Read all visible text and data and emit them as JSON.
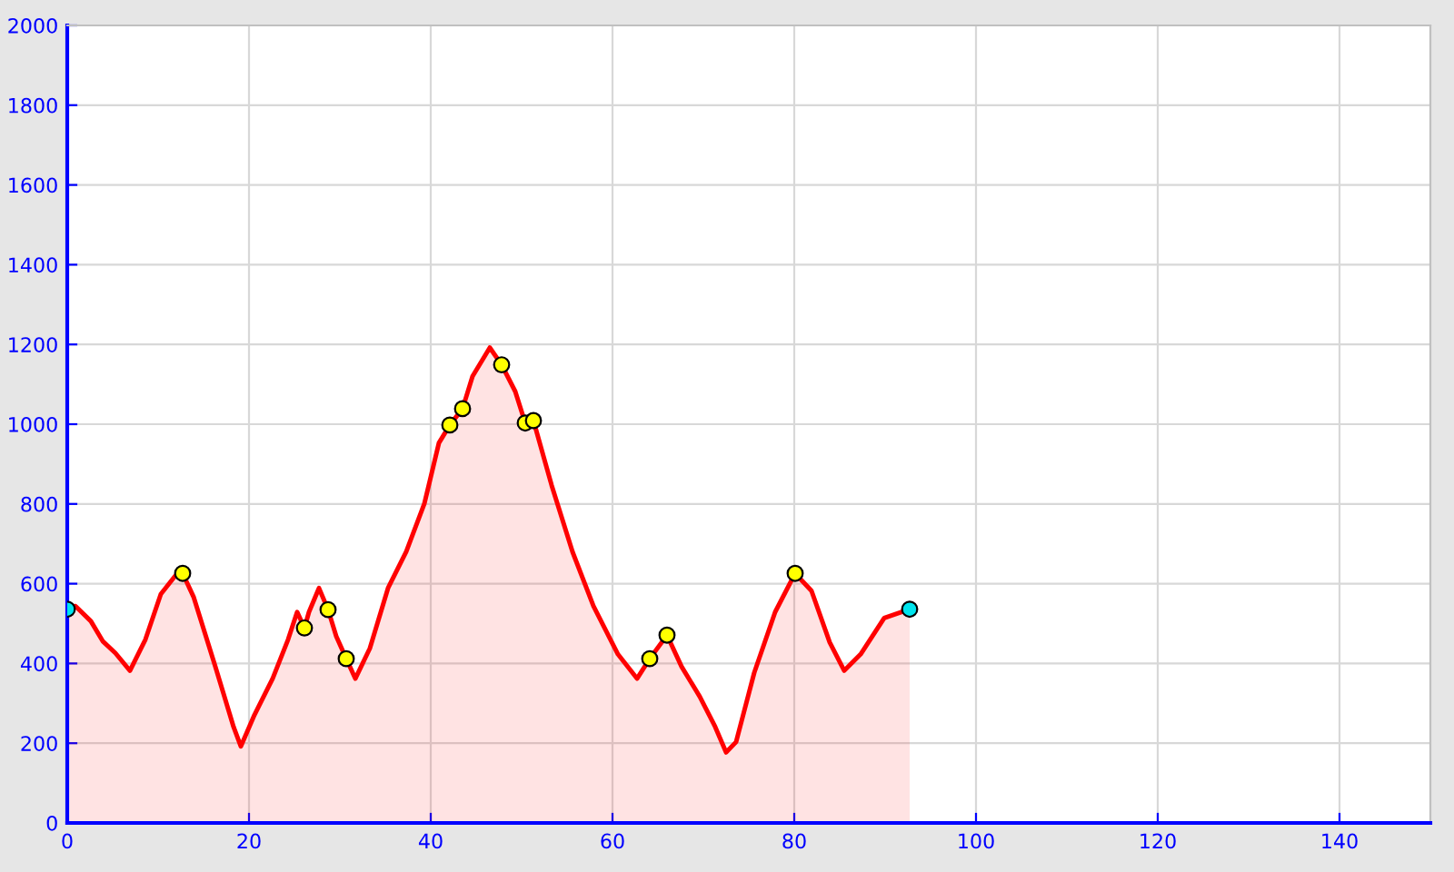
{
  "chart_data": {
    "type": "area",
    "xlim": [
      0,
      150
    ],
    "ylim": [
      0,
      2000
    ],
    "xticks": [
      0,
      20,
      40,
      60,
      80,
      100,
      120,
      140
    ],
    "yticks": [
      0,
      200,
      400,
      600,
      800,
      1000,
      1200,
      1400,
      1600,
      1800,
      2000
    ],
    "grid": true,
    "legend": false,
    "series": [
      {
        "color": "#ff0000",
        "marker": "none",
        "x": [
          0,
          0.9,
          2.6,
          3.9,
          5.3,
          6.9,
          8.6,
          10.3,
          11.9,
          12.7,
          13.9,
          16.3,
          18.3,
          19.1,
          20.6,
          22.6,
          24.3,
          25.3,
          26.1,
          26.6,
          27.7,
          28.7,
          29.6,
          30.7,
          31.7,
          33.3,
          35.3,
          37.3,
          39.3,
          40.9,
          42.1,
          43.5,
          44.6,
          46.5,
          47.8,
          49.3,
          50.4,
          51.3,
          53.3,
          55.6,
          57.9,
          60.6,
          62.7,
          64.1,
          66.0,
          67.6,
          69.6,
          71.3,
          72.5,
          73.6,
          75.6,
          77.9,
          80.1,
          81.9,
          83.9,
          85.5,
          87.3,
          89.9,
          92.7
        ],
        "values": [
          536,
          544,
          506,
          456,
          426,
          382,
          460,
          574,
          620,
          626,
          567,
          392,
          241,
          192,
          271,
          362,
          460,
          529,
          489,
          529,
          589,
          535,
          468,
          412,
          362,
          438,
          589,
          680,
          801,
          953,
          998,
          1039,
          1120,
          1192,
          1149,
          1082,
          1003,
          1009,
          847,
          680,
          544,
          423,
          362,
          412,
          471,
          392,
          317,
          241,
          177,
          203,
          377,
          529,
          626,
          582,
          453,
          382,
          423,
          514,
          536
        ]
      },
      {
        "type": "scatter",
        "color": "#ffff00",
        "marker": "circle",
        "x": [
          12.7,
          26.1,
          28.7,
          30.7,
          42.1,
          43.5,
          47.8,
          50.4,
          51.3,
          64.1,
          66.0,
          80.1
        ],
        "values": [
          626,
          489,
          535,
          412,
          998,
          1039,
          1149,
          1003,
          1009,
          412,
          471,
          626
        ]
      },
      {
        "type": "scatter",
        "color": "#00e5ee",
        "marker": "circle",
        "x": [
          0,
          92.7
        ],
        "values": [
          536,
          536
        ]
      }
    ]
  }
}
